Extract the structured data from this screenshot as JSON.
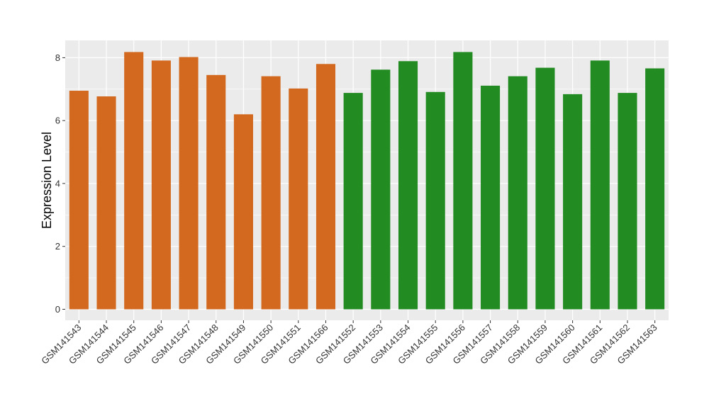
{
  "chart_data": {
    "type": "bar",
    "ylabel": "Expression Level",
    "xlabel": "",
    "ylim": [
      -0.35,
      8.55
    ],
    "yticks": [
      0,
      2,
      4,
      6,
      8
    ],
    "grid": true,
    "legend": "none",
    "colors": {
      "panel_background": "#EBEBEB",
      "grid": "#FFFFFF",
      "group_1": "#D2691E",
      "group_2": "#228B22"
    },
    "categories": [
      "GSM141543",
      "GSM141544",
      "GSM141545",
      "GSM141546",
      "GSM141547",
      "GSM141548",
      "GSM141549",
      "GSM141550",
      "GSM141551",
      "GSM141566",
      "GSM141552",
      "GSM141553",
      "GSM141554",
      "GSM141555",
      "GSM141556",
      "GSM141557",
      "GSM141558",
      "GSM141559",
      "GSM141560",
      "GSM141561",
      "GSM141562",
      "GSM141563"
    ],
    "values": [
      6.95,
      6.77,
      8.18,
      7.91,
      8.02,
      7.45,
      6.2,
      7.41,
      7.02,
      7.8,
      6.88,
      7.62,
      7.89,
      6.91,
      8.18,
      7.11,
      7.41,
      7.68,
      6.84,
      7.91,
      6.88,
      7.66
    ],
    "bar_groups": [
      "group_1",
      "group_1",
      "group_1",
      "group_1",
      "group_1",
      "group_1",
      "group_1",
      "group_1",
      "group_1",
      "group_1",
      "group_2",
      "group_2",
      "group_2",
      "group_2",
      "group_2",
      "group_2",
      "group_2",
      "group_2",
      "group_2",
      "group_2",
      "group_2",
      "group_2"
    ]
  }
}
